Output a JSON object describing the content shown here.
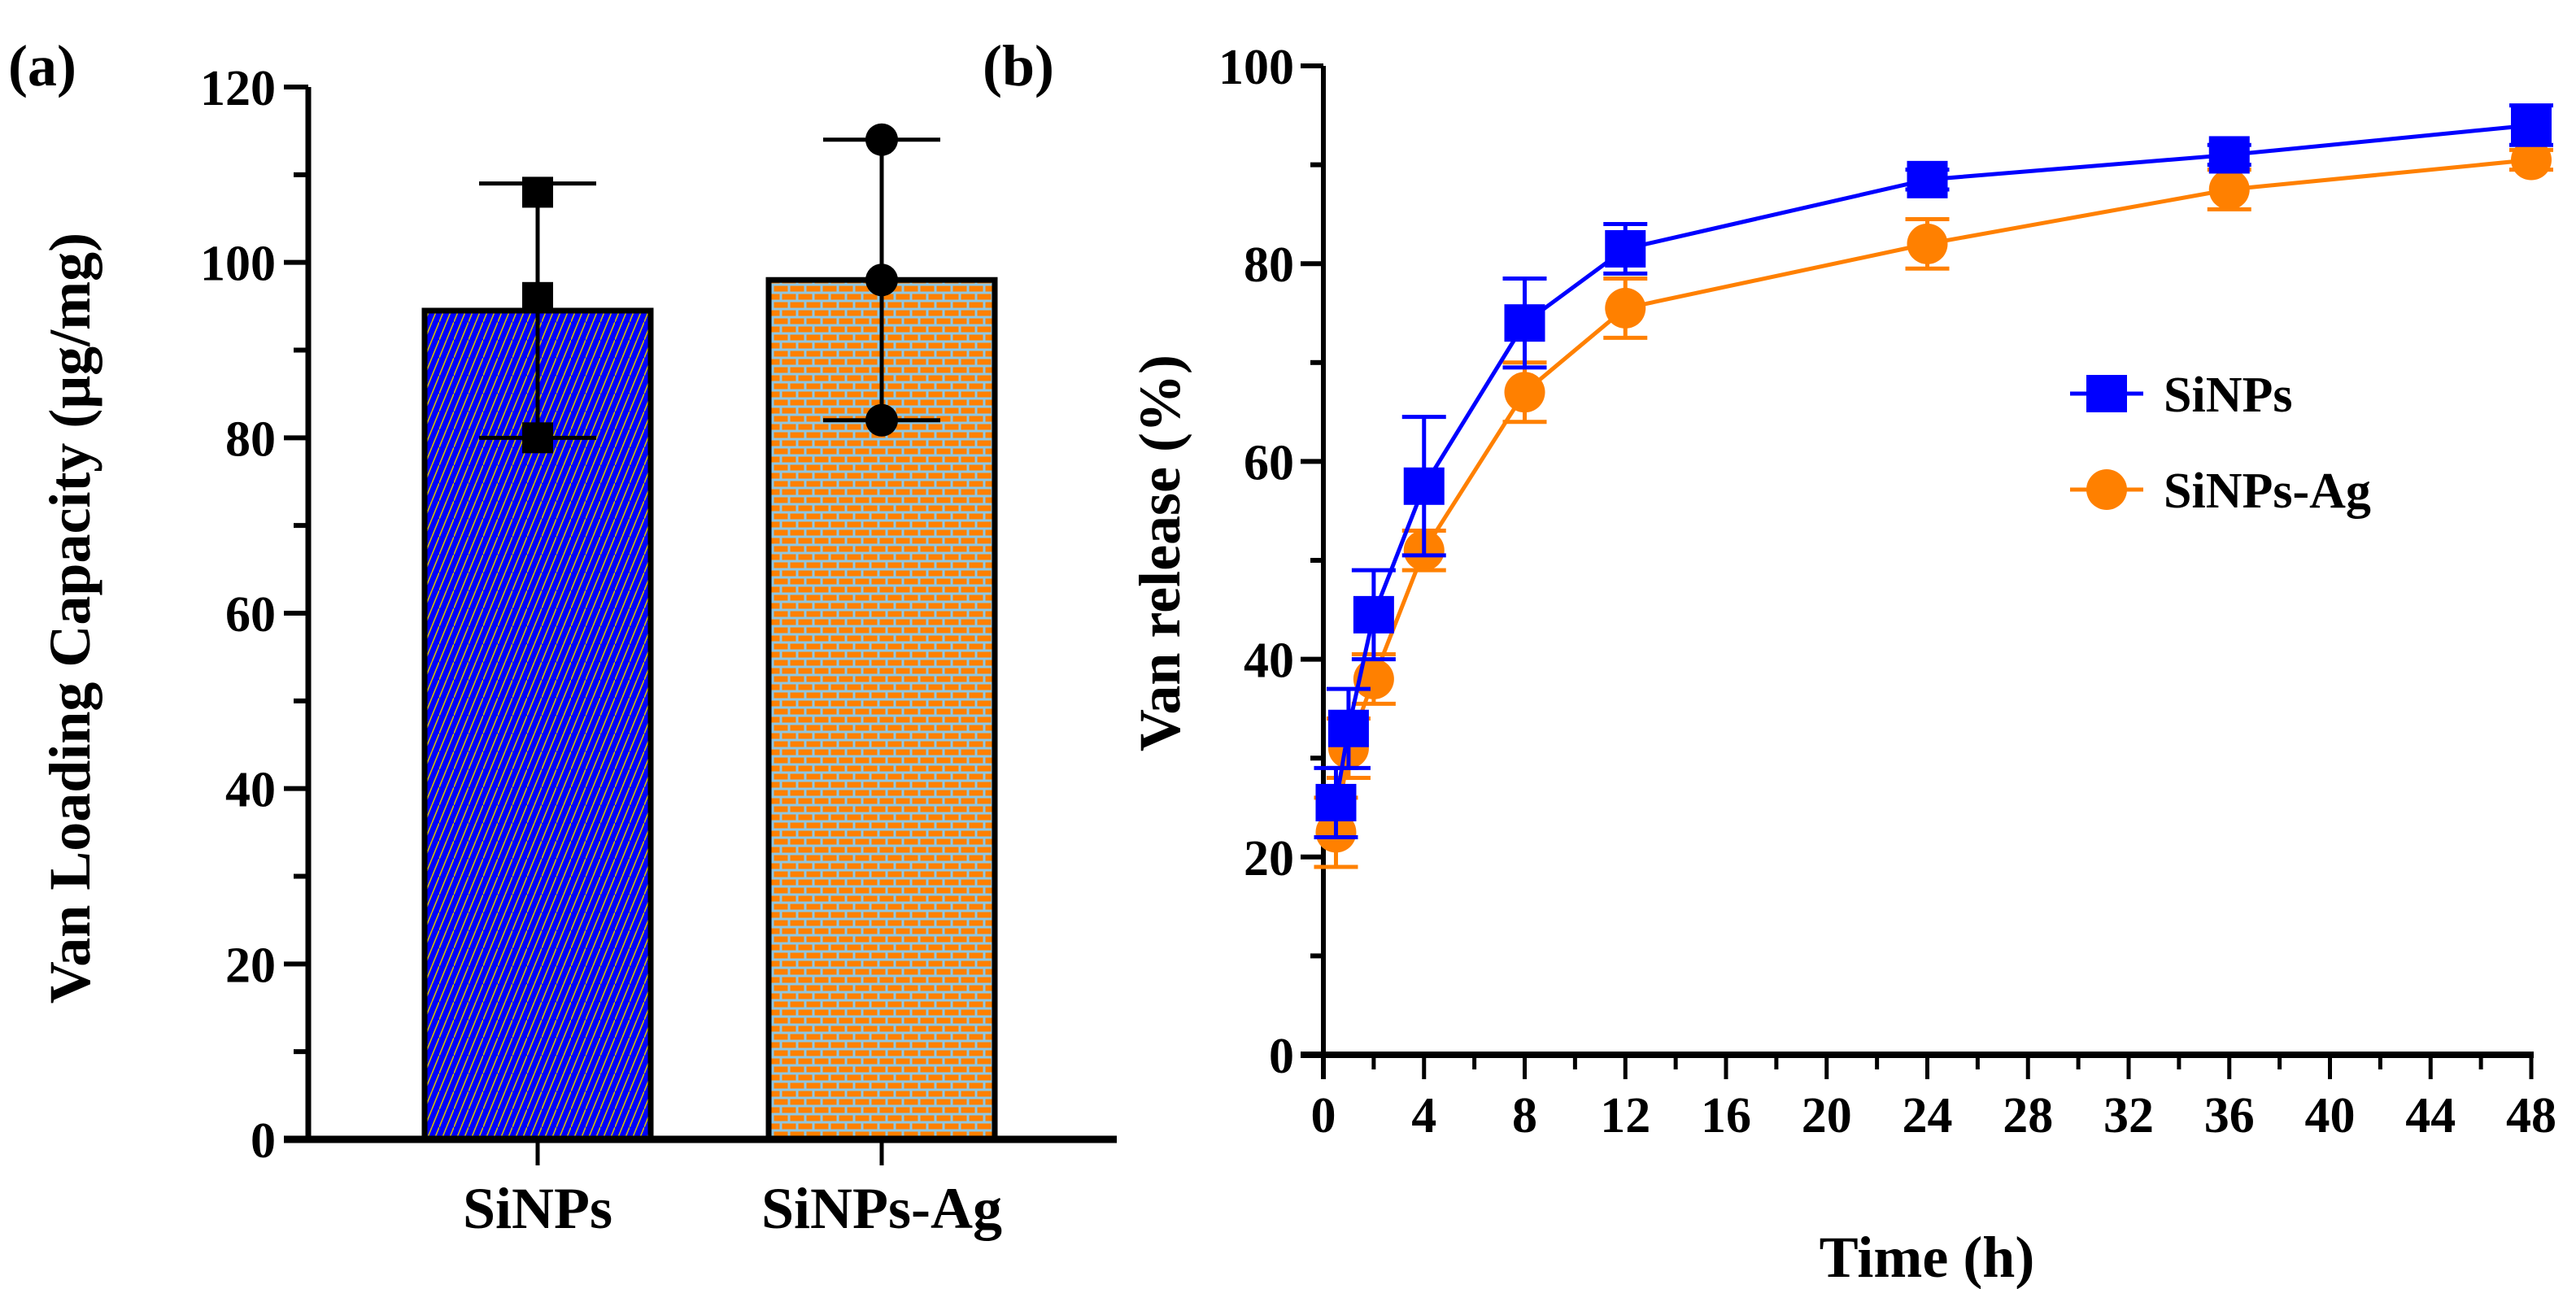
{
  "chart_data": [
    {
      "panel_label": "(a)",
      "type": "bar",
      "title": "",
      "xlabel": "",
      "ylabel": "Van Loading Capacity (μg/mg)",
      "ylim": [
        0,
        120
      ],
      "yticks": [
        0,
        20,
        40,
        60,
        80,
        100,
        120
      ],
      "categories": [
        "SiNPs",
        "SiNPs-Ag"
      ],
      "values": [
        94.5,
        98
      ],
      "error_low": [
        80,
        82
      ],
      "error_high": [
        109,
        114
      ],
      "points": [
        [
          108,
          96,
          80
        ],
        [
          114,
          98,
          82
        ]
      ],
      "point_markers": [
        "square",
        "circle"
      ],
      "colors": [
        "#0000ff",
        "#ff8000"
      ],
      "pattern_colors": [
        "#e0d000",
        "#3399cc"
      ]
    },
    {
      "panel_label": "(b)",
      "type": "line",
      "title": "",
      "xlabel": "Time (h)",
      "ylabel": "Van release (%)",
      "xlim": [
        0,
        48
      ],
      "ylim": [
        0,
        100
      ],
      "xticks": [
        0,
        4,
        8,
        12,
        16,
        20,
        24,
        28,
        32,
        36,
        40,
        44,
        48
      ],
      "yticks": [
        0,
        20,
        40,
        60,
        80,
        100
      ],
      "legend": "right",
      "series": [
        {
          "name": "SiNPs",
          "color": "#0000ff",
          "marker": "square",
          "x": [
            0.5,
            1,
            2,
            4,
            8,
            12,
            24,
            36,
            48
          ],
          "y": [
            25.5,
            33,
            44.5,
            57.5,
            74,
            81.5,
            88.5,
            91,
            94
          ],
          "err": [
            3.5,
            4,
            4.5,
            7,
            4.5,
            2.5,
            1,
            1,
            2
          ]
        },
        {
          "name": "SiNPs-Ag",
          "color": "#ff8000",
          "marker": "circle",
          "x": [
            0.5,
            1,
            2,
            4,
            8,
            12,
            24,
            36,
            48
          ],
          "y": [
            22.5,
            31,
            38,
            51,
            67,
            75.5,
            82,
            87.5,
            90.5
          ],
          "err": [
            3.5,
            3,
            2.5,
            2,
            3,
            3,
            2.5,
            2,
            1
          ]
        }
      ]
    }
  ]
}
